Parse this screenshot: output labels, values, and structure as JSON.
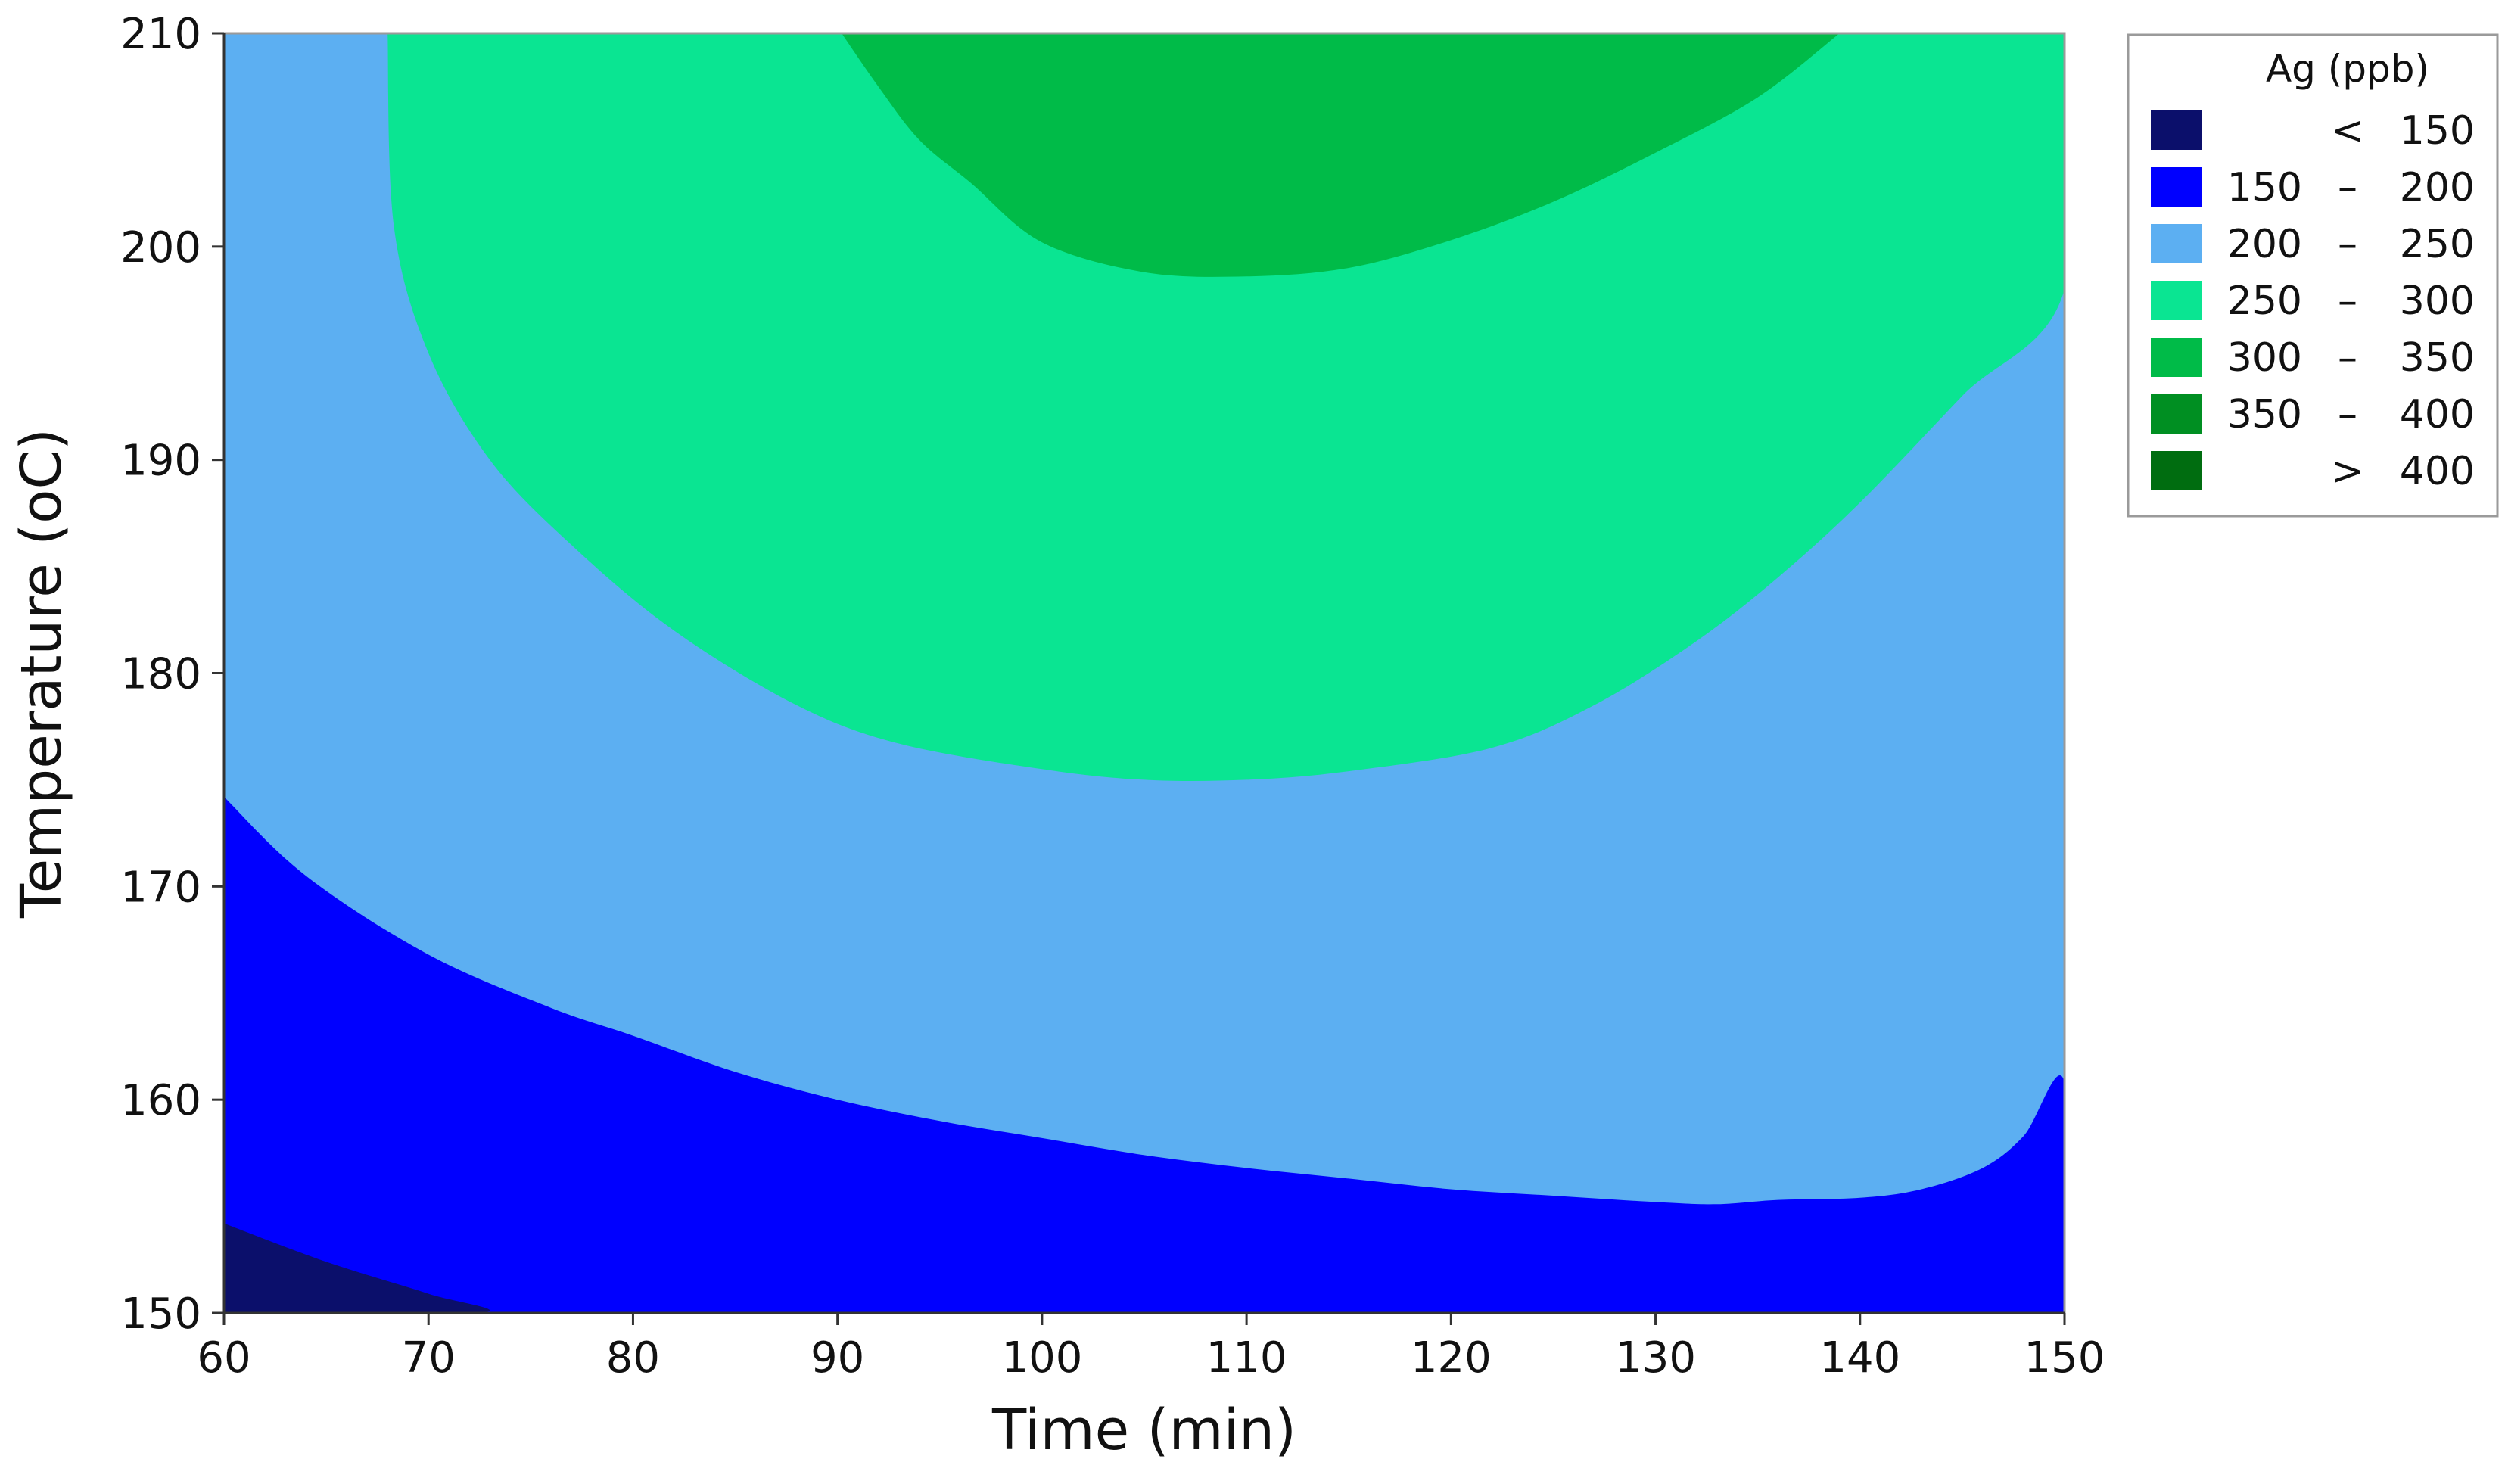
{
  "chart_data": {
    "type": "contour",
    "title": "",
    "xlabel": "Time (min)",
    "ylabel": "Temperature (oC)",
    "xlim": [
      60,
      150
    ],
    "ylim": [
      150,
      210
    ],
    "x_ticks": [
      60,
      70,
      80,
      90,
      100,
      110,
      120,
      130,
      140,
      150
    ],
    "y_ticks": [
      150,
      160,
      170,
      180,
      190,
      200,
      210
    ],
    "grid": false,
    "legend": {
      "title": "Ag (ppb)",
      "placement": "right-top",
      "entries": [
        {
          "lo": "",
          "sep": "<",
          "hi": "150",
          "color": "#0b0f6b"
        },
        {
          "lo": "150",
          "sep": "–",
          "hi": "200",
          "color": "#0000ff"
        },
        {
          "lo": "200",
          "sep": "–",
          "hi": "250",
          "color": "#5caff2"
        },
        {
          "lo": "250",
          "sep": "–",
          "hi": "300",
          "color": "#0ae592"
        },
        {
          "lo": "300",
          "sep": "–",
          "hi": "350",
          "color": "#00bb48"
        },
        {
          "lo": "350",
          "sep": "–",
          "hi": "400",
          "color": "#008f22"
        },
        {
          "lo": "",
          "sep": ">",
          "hi": "400",
          "color": "#006d10"
        }
      ]
    },
    "regions": [
      {
        "band": "150 – 200",
        "color": "#0000ff",
        "points": [
          [
            60,
            174.2
          ],
          [
            64,
            170.5
          ],
          [
            70,
            166.8
          ],
          [
            76,
            164.3
          ],
          [
            80,
            163.0
          ],
          [
            85,
            161.3
          ],
          [
            90,
            160.0
          ],
          [
            95,
            159.0
          ],
          [
            100,
            158.2
          ],
          [
            105,
            157.4
          ],
          [
            110,
            156.8
          ],
          [
            115,
            156.3
          ],
          [
            120,
            155.8
          ],
          [
            125,
            155.5
          ],
          [
            130,
            155.2
          ],
          [
            133,
            155.1
          ],
          [
            136,
            155.3
          ],
          [
            140,
            155.4
          ],
          [
            143,
            155.8
          ],
          [
            146,
            156.8
          ],
          [
            148,
            158.3
          ],
          [
            150,
            160.8
          ],
          [
            150,
            150
          ],
          [
            60,
            150
          ]
        ]
      },
      {
        "band": "< 150",
        "color": "#0b0f6b",
        "points": [
          [
            60,
            154.2
          ],
          [
            65,
            152.4
          ],
          [
            70,
            150.9
          ],
          [
            72.5,
            150
          ],
          [
            60,
            150
          ]
        ]
      },
      {
        "band": "250 – 300",
        "color": "#0ae592",
        "points": [
          [
            68,
            210
          ],
          [
            68.3,
            201
          ],
          [
            70,
            195
          ],
          [
            73,
            190
          ],
          [
            77,
            186
          ],
          [
            82,
            182
          ],
          [
            88,
            178.5
          ],
          [
            93,
            176.7
          ],
          [
            100,
            175.5
          ],
          [
            105,
            175.0
          ],
          [
            110,
            175.0
          ],
          [
            115,
            175.4
          ],
          [
            122,
            176.5
          ],
          [
            127,
            178.5
          ],
          [
            132,
            181.5
          ],
          [
            136,
            184.5
          ],
          [
            140,
            188.0
          ],
          [
            145,
            193.0
          ],
          [
            150,
            198.0
          ],
          [
            150,
            210
          ]
        ]
      },
      {
        "band": "300 – 350",
        "color": "#00bb48",
        "points": [
          [
            90.2,
            210
          ],
          [
            92,
            207.5
          ],
          [
            94,
            205
          ],
          [
            96.5,
            203
          ],
          [
            100,
            200.2
          ],
          [
            105,
            198.8
          ],
          [
            110,
            198.6
          ],
          [
            115,
            199.0
          ],
          [
            120,
            200.3
          ],
          [
            125,
            202.1
          ],
          [
            130,
            204.4
          ],
          [
            135,
            207.0
          ],
          [
            139,
            210
          ]
        ]
      }
    ],
    "region_order": [
      "150 – 200",
      "< 150",
      "250 – 300",
      "300 – 350"
    ],
    "plot_background_band": "200 – 250",
    "plot_background_color": "#5caff2"
  }
}
